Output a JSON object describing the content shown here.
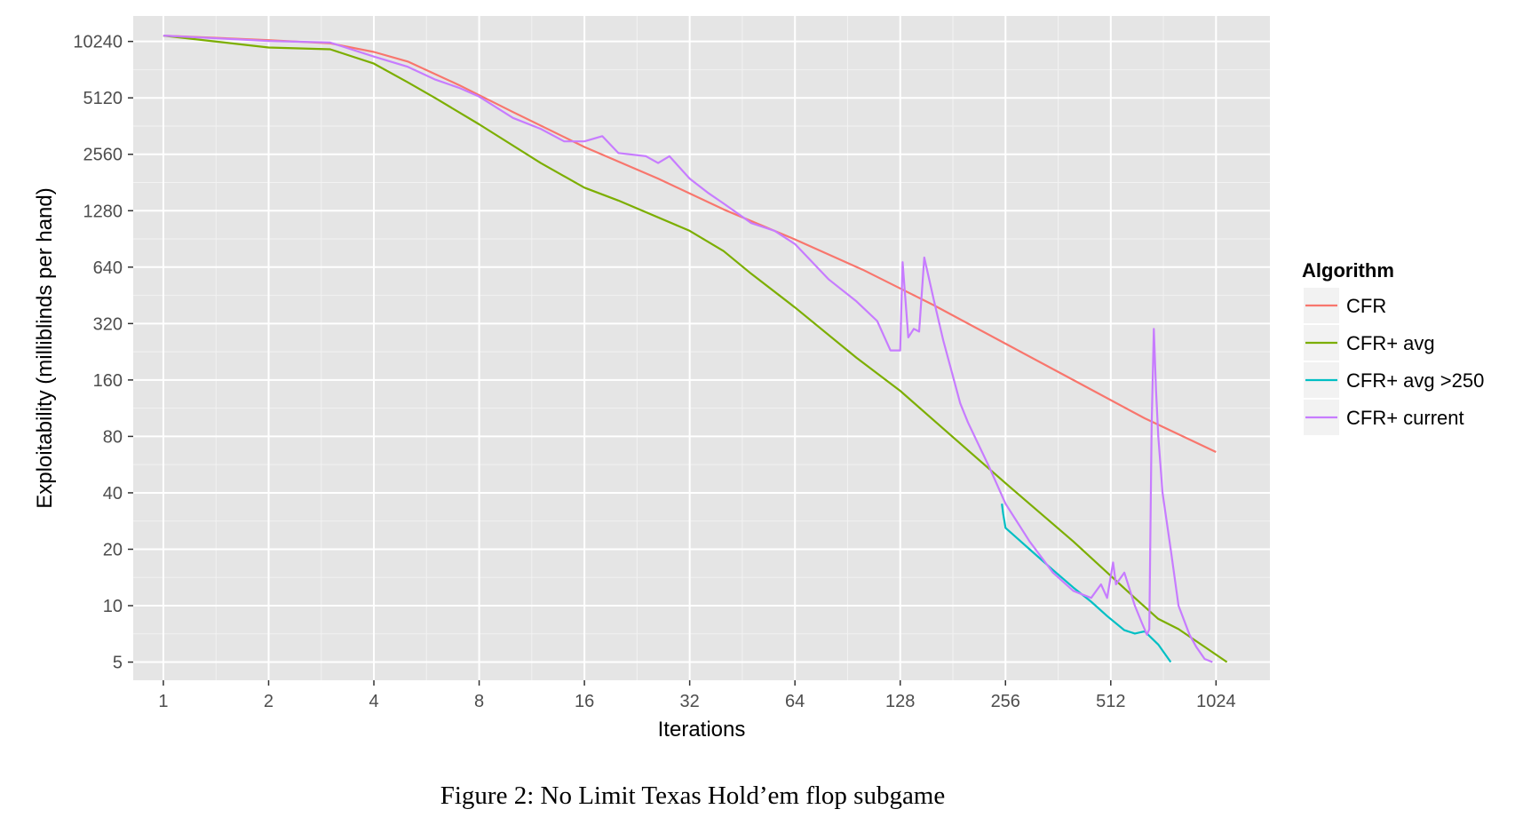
{
  "caption": "Figure 2: No Limit Texas Hold’em flop subgame",
  "chart_data": {
    "type": "line",
    "title": "",
    "xlabel": "Iterations",
    "ylabel": "Exploitability (milliblinds per hand)",
    "x_scale": "log2",
    "y_scale": "log2",
    "xlim": [
      0.82,
      1460
    ],
    "ylim": [
      4,
      14000
    ],
    "x_ticks": [
      1,
      2,
      4,
      8,
      16,
      32,
      64,
      128,
      256,
      512,
      1024
    ],
    "x_tick_labels": [
      "1",
      "2",
      "4",
      "8",
      "16",
      "32",
      "64",
      "128",
      "256",
      "512",
      "1024"
    ],
    "y_ticks": [
      5,
      10,
      20,
      40,
      80,
      160,
      320,
      640,
      1280,
      2560,
      5120,
      10240
    ],
    "y_tick_labels": [
      "5",
      "10",
      "20",
      "40",
      "80",
      "160",
      "320",
      "640",
      "1280",
      "2560",
      "5120",
      "10240"
    ],
    "grid": true,
    "background": "#e5e5e5",
    "legend": {
      "title": "Algorithm",
      "position": "right"
    },
    "series": [
      {
        "name": "CFR",
        "color": "#f8766d",
        "x": [
          1,
          2,
          3,
          4,
          5,
          7,
          10,
          16,
          26,
          40,
          64,
          100,
          160,
          256,
          400,
          640,
          1024
        ],
        "y": [
          11000,
          10400,
          10000,
          9000,
          8000,
          6000,
          4300,
          2800,
          1900,
          1300,
          900,
          620,
          400,
          250,
          160,
          100,
          66
        ]
      },
      {
        "name": "CFR+ avg",
        "color": "#7cae00",
        "x": [
          1,
          2,
          3,
          4,
          5,
          6,
          8,
          12,
          16,
          20,
          32,
          40,
          48,
          64,
          96,
          128,
          170,
          256,
          400,
          600,
          700,
          800,
          1100
        ],
        "y": [
          11000,
          9500,
          9300,
          7800,
          6200,
          5100,
          3700,
          2300,
          1700,
          1450,
          1000,
          780,
          590,
          390,
          210,
          140,
          88,
          45,
          22,
          11,
          8.5,
          7.5,
          5
        ]
      },
      {
        "name": "CFR+ avg >250",
        "color": "#00bfc4",
        "x": [
          250,
          252,
          256,
          300,
          350,
          400,
          450,
          500,
          560,
          600,
          640,
          700,
          760
        ],
        "y": [
          35,
          31,
          26,
          20,
          15.5,
          12.5,
          10.5,
          8.8,
          7.4,
          7.1,
          7.3,
          6.2,
          5
        ]
      },
      {
        "name": "CFR+ current",
        "color": "#c77cff",
        "x": [
          1,
          2,
          3,
          4,
          5,
          6,
          7,
          8,
          10,
          12,
          14,
          16,
          18,
          20,
          24,
          26,
          28,
          32,
          36,
          40,
          48,
          56,
          64,
          80,
          96,
          110,
          120,
          125,
          128,
          130,
          135,
          140,
          145,
          150,
          160,
          170,
          190,
          200,
          230,
          256,
          300,
          350,
          400,
          450,
          480,
          500,
          520,
          530,
          560,
          600,
          630,
          650,
          660,
          670,
          680,
          690,
          700,
          720,
          760,
          800,
          860,
          900,
          950,
          1000
        ],
        "y": [
          11000,
          10300,
          10100,
          8500,
          7500,
          6400,
          5800,
          5200,
          4000,
          3500,
          3000,
          3000,
          3200,
          2600,
          2500,
          2300,
          2500,
          1900,
          1600,
          1400,
          1100,
          1000,
          850,
          550,
          420,
          330,
          230,
          230,
          230,
          680,
          270,
          300,
          290,
          720,
          420,
          260,
          120,
          95,
          55,
          35,
          22,
          15,
          12,
          11,
          13,
          11,
          17,
          13,
          15,
          10,
          8,
          7,
          7.5,
          90,
          300,
          140,
          80,
          40,
          20,
          10,
          7,
          6,
          5.2,
          5
        ]
      }
    ]
  }
}
